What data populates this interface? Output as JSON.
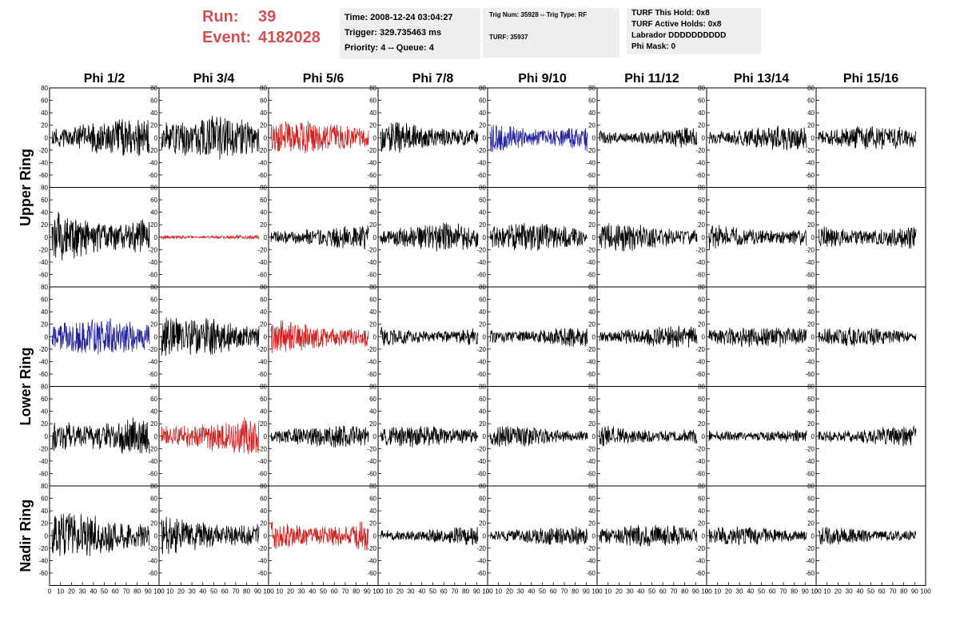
{
  "header": {
    "run_label": "Run:",
    "run_value": "39",
    "event_label": "Event:",
    "event_value": "4182028",
    "accent_color": "#d05050"
  },
  "info_box_1": {
    "time": "Time: 2008-12-24 03:04:27",
    "trigger": "Trigger: 329.735463 ms",
    "priority": "Priority: 4 -- Queue: 4"
  },
  "info_box_2": {
    "trig": "Trig Num: 35928 -- Trig Type: RF",
    "turf": "TURF: 35937"
  },
  "info_box_3": {
    "this_hold": "TURF This Hold: 0x8",
    "active_holds": "TURF Active Holds: 0x8",
    "labrador": "Labrador DDDDDDDDDD",
    "phi_mask": "Phi Mask: 0"
  },
  "columns": [
    "Phi 1/2",
    "Phi 3/4",
    "Phi 5/6",
    "Phi 7/8",
    "Phi 9/10",
    "Phi 11/12",
    "Phi 13/14",
    "Phi 15/16"
  ],
  "row_groups": [
    {
      "label": "Upper Ring",
      "rows": [
        0,
        1
      ]
    },
    {
      "label": "Lower Ring",
      "rows": [
        2,
        3
      ]
    },
    {
      "label": "Nadir Ring",
      "rows": [
        4
      ]
    }
  ],
  "chart_data": {
    "type": "line",
    "grid_rows": 5,
    "grid_cols": 8,
    "ylim": [
      -80,
      80
    ],
    "y_ticks": [
      -60,
      -40,
      -20,
      0,
      20,
      40,
      60,
      80
    ],
    "y_tick_labels": [
      "-60",
      "-40",
      "-20",
      "0",
      "20",
      "40",
      "60",
      "80"
    ],
    "xlim": [
      0,
      100
    ],
    "x_ticks": [
      0,
      10,
      20,
      30,
      40,
      50,
      60,
      70,
      80,
      90,
      100
    ],
    "x_tick_labels": [
      "0",
      "10",
      "20",
      "30",
      "40",
      "50",
      "60",
      "70",
      "80",
      "90",
      "100"
    ],
    "colors": {
      "normal": "#000000",
      "red": "#cc2222",
      "blue": "#22229a"
    },
    "panels": [
      {
        "r": 0,
        "c": 0,
        "color": "normal",
        "amp": 24,
        "seed": 11
      },
      {
        "r": 0,
        "c": 1,
        "color": "normal",
        "amp": 28,
        "seed": 12
      },
      {
        "r": 0,
        "c": 2,
        "color": "red",
        "amp": 22,
        "seed": 13
      },
      {
        "r": 0,
        "c": 3,
        "color": "normal",
        "amp": 20,
        "seed": 14
      },
      {
        "r": 0,
        "c": 4,
        "color": "blue",
        "amp": 20,
        "seed": 15
      },
      {
        "r": 0,
        "c": 5,
        "color": "normal",
        "amp": 14,
        "seed": 16
      },
      {
        "r": 0,
        "c": 6,
        "color": "normal",
        "amp": 16,
        "seed": 17
      },
      {
        "r": 0,
        "c": 7,
        "color": "normal",
        "amp": 15,
        "seed": 18
      },
      {
        "r": 1,
        "c": 0,
        "color": "normal",
        "amp": 34,
        "seed": 21
      },
      {
        "r": 1,
        "c": 1,
        "color": "red",
        "amp": 3,
        "seed": 22
      },
      {
        "r": 1,
        "c": 2,
        "color": "normal",
        "amp": 16,
        "seed": 23
      },
      {
        "r": 1,
        "c": 3,
        "color": "normal",
        "amp": 18,
        "seed": 24
      },
      {
        "r": 1,
        "c": 4,
        "color": "normal",
        "amp": 18,
        "seed": 25
      },
      {
        "r": 1,
        "c": 5,
        "color": "normal",
        "amp": 18,
        "seed": 26
      },
      {
        "r": 1,
        "c": 6,
        "color": "normal",
        "amp": 16,
        "seed": 27
      },
      {
        "r": 1,
        "c": 7,
        "color": "normal",
        "amp": 18,
        "seed": 28
      },
      {
        "r": 2,
        "c": 0,
        "color": "blue",
        "amp": 24,
        "seed": 31
      },
      {
        "r": 2,
        "c": 1,
        "color": "normal",
        "amp": 26,
        "seed": 32
      },
      {
        "r": 2,
        "c": 2,
        "color": "red",
        "amp": 22,
        "seed": 33
      },
      {
        "r": 2,
        "c": 3,
        "color": "normal",
        "amp": 14,
        "seed": 34
      },
      {
        "r": 2,
        "c": 4,
        "color": "normal",
        "amp": 14,
        "seed": 35
      },
      {
        "r": 2,
        "c": 5,
        "color": "normal",
        "amp": 14,
        "seed": 36
      },
      {
        "r": 2,
        "c": 6,
        "color": "normal",
        "amp": 14,
        "seed": 37
      },
      {
        "r": 2,
        "c": 7,
        "color": "normal",
        "amp": 12,
        "seed": 38
      },
      {
        "r": 3,
        "c": 0,
        "color": "normal",
        "amp": 30,
        "seed": 41
      },
      {
        "r": 3,
        "c": 1,
        "color": "red",
        "amp": 24,
        "seed": 42
      },
      {
        "r": 3,
        "c": 2,
        "color": "normal",
        "amp": 14,
        "seed": 43
      },
      {
        "r": 3,
        "c": 3,
        "color": "normal",
        "amp": 14,
        "seed": 44
      },
      {
        "r": 3,
        "c": 4,
        "color": "normal",
        "amp": 14,
        "seed": 45
      },
      {
        "r": 3,
        "c": 5,
        "color": "normal",
        "amp": 14,
        "seed": 46
      },
      {
        "r": 3,
        "c": 6,
        "color": "normal",
        "amp": 10,
        "seed": 47
      },
      {
        "r": 3,
        "c": 7,
        "color": "normal",
        "amp": 14,
        "seed": 48
      },
      {
        "r": 4,
        "c": 0,
        "color": "normal",
        "amp": 28,
        "seed": 51
      },
      {
        "r": 4,
        "c": 1,
        "color": "normal",
        "amp": 24,
        "seed": 52
      },
      {
        "r": 4,
        "c": 2,
        "color": "red",
        "amp": 22,
        "seed": 53
      },
      {
        "r": 4,
        "c": 3,
        "color": "normal",
        "amp": 12,
        "seed": 54
      },
      {
        "r": 4,
        "c": 4,
        "color": "normal",
        "amp": 12,
        "seed": 55
      },
      {
        "r": 4,
        "c": 5,
        "color": "normal",
        "amp": 14,
        "seed": 56
      },
      {
        "r": 4,
        "c": 6,
        "color": "normal",
        "amp": 12,
        "seed": 57
      },
      {
        "r": 4,
        "c": 7,
        "color": "normal",
        "amp": 12,
        "seed": 58
      }
    ]
  }
}
